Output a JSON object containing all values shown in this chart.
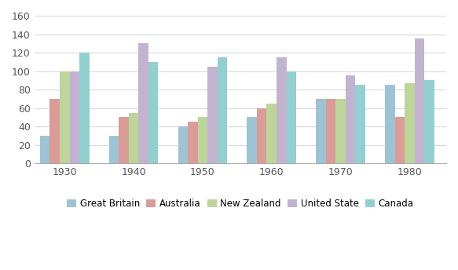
{
  "years": [
    "1930",
    "1940",
    "1950",
    "1960",
    "1970",
    "1980"
  ],
  "series": {
    "Great Britain": [
      30,
      30,
      40,
      50,
      70,
      85
    ],
    "Australia": [
      70,
      50,
      45,
      60,
      70,
      50
    ],
    "New Zealand": [
      100,
      55,
      50,
      65,
      70,
      87
    ],
    "United State": [
      100,
      130,
      105,
      115,
      95,
      135
    ],
    "Canada": [
      120,
      110,
      115,
      100,
      85,
      90
    ]
  },
  "colors": {
    "Great Britain": "#9dc3d4",
    "Australia": "#da9c96",
    "New Zealand": "#bdd49a",
    "United State": "#c2b3d0",
    "Canada": "#93cfd0"
  },
  "ylim": [
    0,
    160
  ],
  "yticks": [
    0,
    20,
    40,
    60,
    80,
    100,
    120,
    140,
    160
  ],
  "legend_labels": [
    "Great Britain",
    "Australia",
    "New Zealand",
    "United State",
    "Canada"
  ],
  "background_color": "#ffffff",
  "grid_color": "#d9d9d9"
}
